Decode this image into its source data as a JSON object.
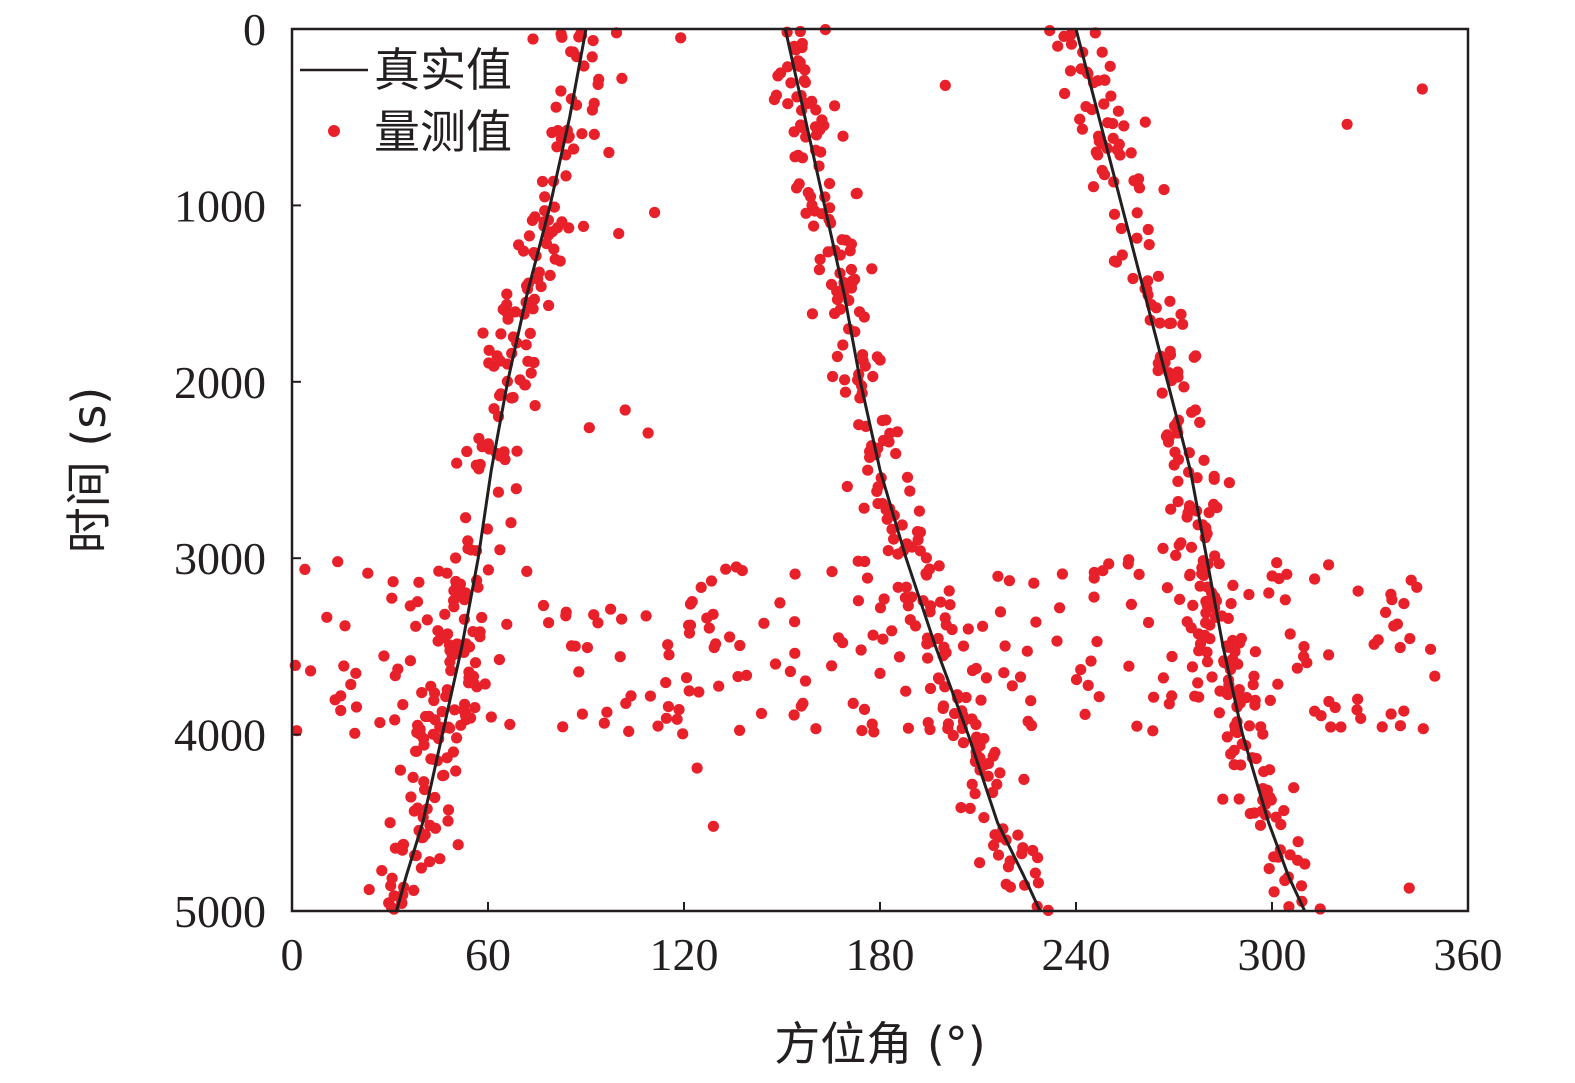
{
  "chart_data": {
    "type": "scatter",
    "title": "",
    "xlabel": "方位角 (°)",
    "ylabel": "时间 (s)",
    "xlim": [
      0,
      360
    ],
    "ylim": [
      0,
      5000
    ],
    "y_inverted": true,
    "x_ticks": [
      0,
      60,
      120,
      180,
      240,
      300,
      360
    ],
    "y_ticks": [
      0,
      1000,
      2000,
      3000,
      4000,
      5000
    ],
    "grid": false,
    "legend_position": "top-left",
    "colors": {
      "true_line": "#231f20",
      "measured": "#e8202a",
      "axis": "#231f20"
    },
    "series": [
      {
        "name": "真实值",
        "kind": "line",
        "tracks": [
          {
            "x": [
              90,
              85,
              79,
              72,
              66,
              61,
              57,
              52,
              46,
              40,
              35,
              32
            ],
            "y": [
              0,
              500,
              1000,
              1500,
              2000,
              2500,
              3000,
              3500,
              4000,
              4500,
              4800,
              5000
            ]
          },
          {
            "x": [
              151,
              157,
              163,
              169,
              174,
              180,
              188,
              197,
              207,
              216,
              224,
              229
            ],
            "y": [
              0,
              500,
              1000,
              1500,
              2000,
              2500,
              3000,
              3500,
              4000,
              4500,
              4800,
              5000
            ]
          },
          {
            "x": [
              240,
              247,
              254,
              261,
              268,
              275,
              280,
              285,
              291,
              299,
              305,
              310
            ],
            "y": [
              0,
              500,
              1000,
              1500,
              2000,
              2500,
              3000,
              3500,
              4000,
              4500,
              4800,
              5000
            ]
          }
        ]
      },
      {
        "name": "量测值",
        "kind": "scatter",
        "noise_sd_deg": 4.5,
        "points_per_track": 240,
        "clutter_points": 260,
        "clutter_time_range": [
          3000,
          4000
        ],
        "sparse_outliers": [
          {
            "x": 119,
            "y": 50
          },
          {
            "x": 101,
            "y": 280
          },
          {
            "x": 200,
            "y": 320
          },
          {
            "x": 346,
            "y": 340
          },
          {
            "x": 323,
            "y": 540
          },
          {
            "x": 97,
            "y": 700
          },
          {
            "x": 111,
            "y": 1040
          },
          {
            "x": 100,
            "y": 1160
          },
          {
            "x": 102,
            "y": 2160
          },
          {
            "x": 109,
            "y": 2290
          },
          {
            "x": 91,
            "y": 2260
          },
          {
            "x": 14,
            "y": 3020
          },
          {
            "x": 136,
            "y": 3050
          },
          {
            "x": 154,
            "y": 3090
          },
          {
            "x": 122,
            "y": 3260
          },
          {
            "x": 122,
            "y": 3380
          },
          {
            "x": 148,
            "y": 3600
          },
          {
            "x": 124,
            "y": 4190
          },
          {
            "x": 129,
            "y": 4520
          },
          {
            "x": 342,
            "y": 4870
          }
        ]
      }
    ]
  }
}
